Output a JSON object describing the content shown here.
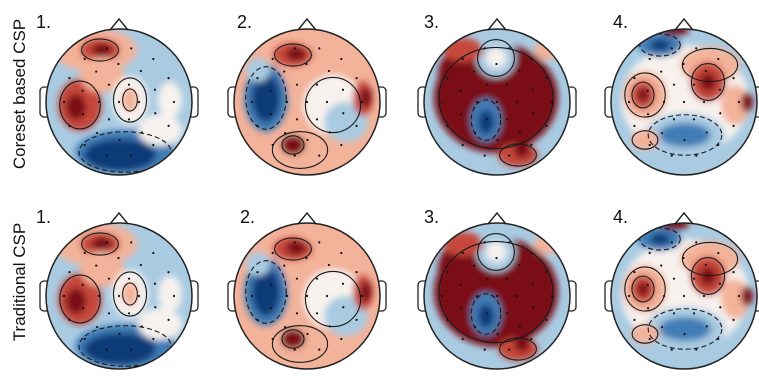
{
  "rows": [
    {
      "label": "Coreset based CSP",
      "maps": [
        {
          "number": "1.",
          "pattern": "p1"
        },
        {
          "number": "2.",
          "pattern": "p2"
        },
        {
          "number": "3.",
          "pattern": "p3"
        },
        {
          "number": "4.",
          "pattern": "p4"
        }
      ]
    },
    {
      "label": "Traditional CSP",
      "maps": [
        {
          "number": "1.",
          "pattern": "p1"
        },
        {
          "number": "2.",
          "pattern": "p2"
        },
        {
          "number": "3.",
          "pattern": "p3"
        },
        {
          "number": "4.",
          "pattern": "p4"
        }
      ]
    }
  ],
  "colors": {
    "dark_red": "#7a0a14",
    "red": "#c6463a",
    "light_red": "#f3b29a",
    "neutral": "#f7f2ee",
    "light_blue": "#a9cbe2",
    "blue": "#3f7db6",
    "dark_blue": "#0b3b78",
    "outline": "#222222"
  }
}
